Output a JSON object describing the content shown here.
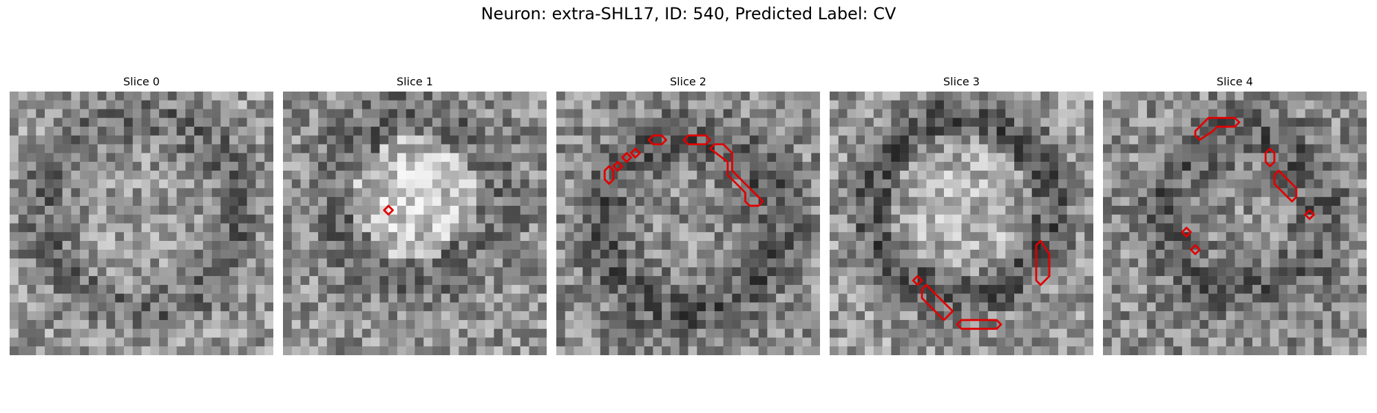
{
  "figure": {
    "title": "Neuron: extra-SHL17, ID: 540, Predicted Label: CV"
  },
  "panels": [
    {
      "title": "Slice 0",
      "contours": []
    },
    {
      "title": "Slice 1",
      "contours": [
        [
          [
            11.5,
            13.5
          ],
          [
            12.0,
            13.0
          ],
          [
            12.5,
            13.5
          ],
          [
            12.0,
            14.0
          ]
        ]
      ]
    },
    {
      "title": "Slice 2",
      "contours": [
        [
          [
            5.5,
            9.0
          ],
          [
            6.0,
            8.5
          ],
          [
            6.5,
            9.0
          ],
          [
            6.5,
            10.0
          ],
          [
            6.0,
            10.5
          ],
          [
            5.5,
            10.0
          ]
        ],
        [
          [
            6.5,
            8.5
          ],
          [
            7.0,
            8.0
          ],
          [
            7.5,
            8.5
          ],
          [
            7.0,
            9.0
          ]
        ],
        [
          [
            7.5,
            7.5
          ],
          [
            8.0,
            7.0
          ],
          [
            8.5,
            7.5
          ],
          [
            8.0,
            8.0
          ]
        ],
        [
          [
            8.5,
            7.0
          ],
          [
            9.0,
            6.5
          ],
          [
            9.5,
            7.0
          ],
          [
            9.0,
            7.5
          ]
        ],
        [
          [
            10.5,
            5.5
          ],
          [
            11.0,
            5.0
          ],
          [
            12.0,
            5.0
          ],
          [
            12.5,
            5.5
          ],
          [
            12.0,
            6.0
          ],
          [
            11.0,
            6.0
          ]
        ],
        [
          [
            14.5,
            5.5
          ],
          [
            15.0,
            5.0
          ],
          [
            17.0,
            5.0
          ],
          [
            17.5,
            5.5
          ],
          [
            17.0,
            6.0
          ],
          [
            15.0,
            6.0
          ]
        ],
        [
          [
            17.5,
            6.5
          ],
          [
            18.0,
            6.0
          ],
          [
            19.0,
            6.0
          ],
          [
            20.0,
            7.0
          ],
          [
            20.0,
            9.0
          ],
          [
            22.5,
            11.5
          ],
          [
            23.5,
            12.5
          ],
          [
            23.0,
            13.0
          ],
          [
            22.0,
            13.0
          ],
          [
            21.5,
            12.5
          ],
          [
            21.5,
            11.5
          ],
          [
            19.5,
            9.5
          ],
          [
            19.5,
            8.0
          ]
        ]
      ]
    },
    {
      "title": "Slice 3",
      "contours": [
        [
          [
            9.5,
            21.5
          ],
          [
            10.0,
            21.0
          ],
          [
            10.5,
            21.5
          ],
          [
            10.0,
            22.0
          ]
        ],
        [
          [
            10.5,
            22.5
          ],
          [
            11.0,
            22.0
          ],
          [
            14.0,
            25.0
          ],
          [
            13.0,
            26.0
          ],
          [
            10.5,
            23.5
          ]
        ],
        [
          [
            14.5,
            26.5
          ],
          [
            15.0,
            26.0
          ],
          [
            19.0,
            26.0
          ],
          [
            19.5,
            26.5
          ],
          [
            19.0,
            27.0
          ],
          [
            15.0,
            27.0
          ]
        ],
        [
          [
            23.5,
            17.5
          ],
          [
            24.0,
            17.0
          ],
          [
            25.0,
            18.5
          ],
          [
            25.0,
            21.0
          ],
          [
            24.0,
            22.0
          ],
          [
            23.5,
            21.5
          ]
        ]
      ]
    },
    {
      "title": "Slice 4",
      "contours": [
        [
          [
            10.5,
            4.5
          ],
          [
            12.0,
            3.0
          ],
          [
            15.0,
            3.0
          ],
          [
            15.5,
            3.5
          ],
          [
            15.0,
            4.0
          ],
          [
            13.0,
            4.0
          ],
          [
            12.5,
            4.5
          ],
          [
            11.0,
            5.5
          ],
          [
            10.5,
            5.0
          ]
        ],
        [
          [
            18.5,
            7.0
          ],
          [
            19.0,
            6.5
          ],
          [
            19.5,
            7.0
          ],
          [
            19.5,
            8.0
          ],
          [
            19.0,
            8.5
          ],
          [
            18.5,
            8.0
          ]
        ],
        [
          [
            19.5,
            9.5
          ],
          [
            20.0,
            9.0
          ],
          [
            21.0,
            10.0
          ],
          [
            22.0,
            11.0
          ],
          [
            22.0,
            12.0
          ],
          [
            21.5,
            12.5
          ],
          [
            20.5,
            11.5
          ],
          [
            19.5,
            10.5
          ]
        ],
        [
          [
            23.0,
            14.0
          ],
          [
            23.5,
            13.5
          ],
          [
            24.0,
            14.0
          ],
          [
            23.5,
            14.5
          ]
        ],
        [
          [
            9.0,
            16.0
          ],
          [
            9.5,
            15.5
          ],
          [
            10.0,
            16.0
          ],
          [
            9.5,
            16.5
          ]
        ],
        [
          [
            10.0,
            18.0
          ],
          [
            10.5,
            17.5
          ],
          [
            11.0,
            18.0
          ],
          [
            10.5,
            18.5
          ]
        ]
      ]
    }
  ]
}
